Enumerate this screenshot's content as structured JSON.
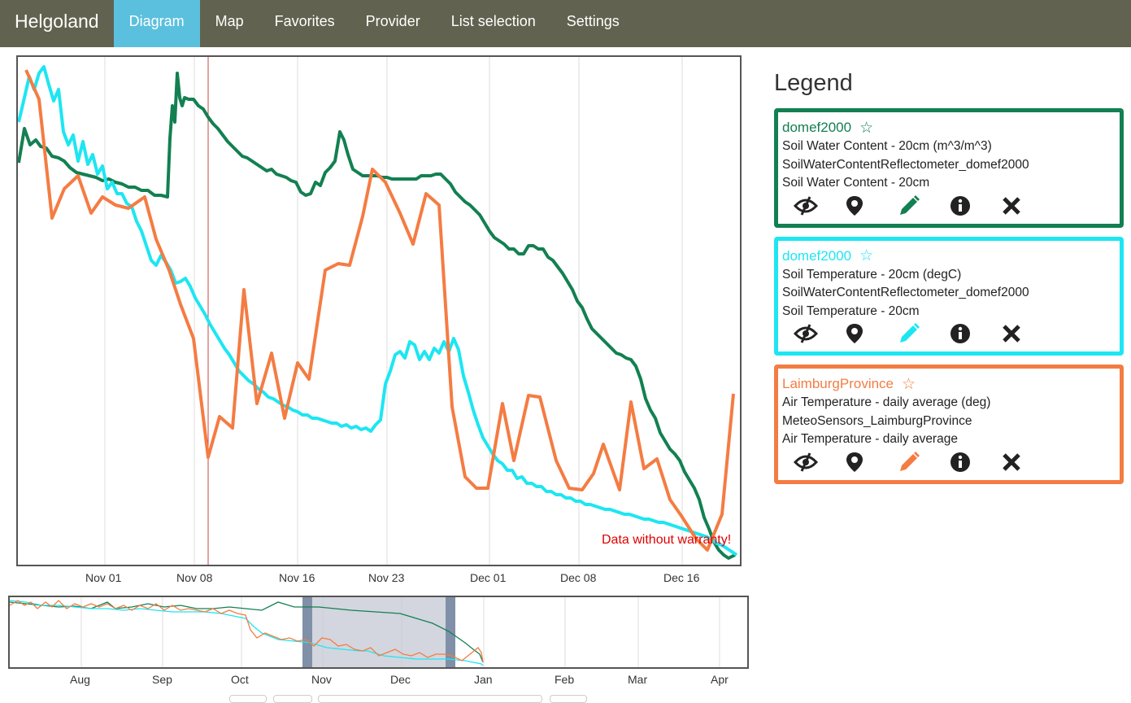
{
  "navbar": {
    "brand": "Helgoland",
    "items": [
      {
        "label": "Diagram",
        "active": true
      },
      {
        "label": "Map",
        "active": false
      },
      {
        "label": "Favorites",
        "active": false
      },
      {
        "label": "Provider",
        "active": false
      },
      {
        "label": "List selection",
        "active": false
      },
      {
        "label": "Settings",
        "active": false
      }
    ]
  },
  "main_chart": {
    "x_ticks": [
      "Nov 01",
      "Nov 08",
      "Nov 16",
      "Nov 23",
      "Dec 01",
      "Dec 08",
      "Dec 16"
    ],
    "warranty_text": "Data without warranty!"
  },
  "overview_chart": {
    "x_ticks": [
      "Aug",
      "Sep",
      "Oct",
      "Nov",
      "Dec",
      "Jan",
      "Feb",
      "Mar",
      "Apr"
    ]
  },
  "legend": {
    "title": "Legend",
    "entries": [
      {
        "station": "domef2000",
        "color": "#138052",
        "line1": "Soil Water Content - 20cm (m^3/m^3)",
        "line2": "SoilWaterContentReflectometer_domef2000",
        "line3": "Soil Water Content - 20cm"
      },
      {
        "station": "domef2000",
        "color": "#1de6f2",
        "line1": "Soil Temperature - 20cm (degC)",
        "line2": "SoilWaterContentReflectometer_domef2000",
        "line3": "Soil Temperature - 20cm"
      },
      {
        "station": "LaimburgProvince",
        "color": "#f47c43",
        "line1": "Air Temperature - daily average (deg)",
        "line2": "MeteoSensors_LaimburgProvince",
        "line3": "Air Temperature - daily average"
      }
    ],
    "icons": [
      "eye-slash-icon",
      "map-marker-icon",
      "pencil-icon",
      "info-icon",
      "close-icon"
    ]
  },
  "colors": {
    "navbar": "#626250",
    "active_tab": "#5bc0de",
    "green": "#138052",
    "cyan": "#1de6f2",
    "orange": "#f47c43",
    "warning": "#e00000"
  }
}
